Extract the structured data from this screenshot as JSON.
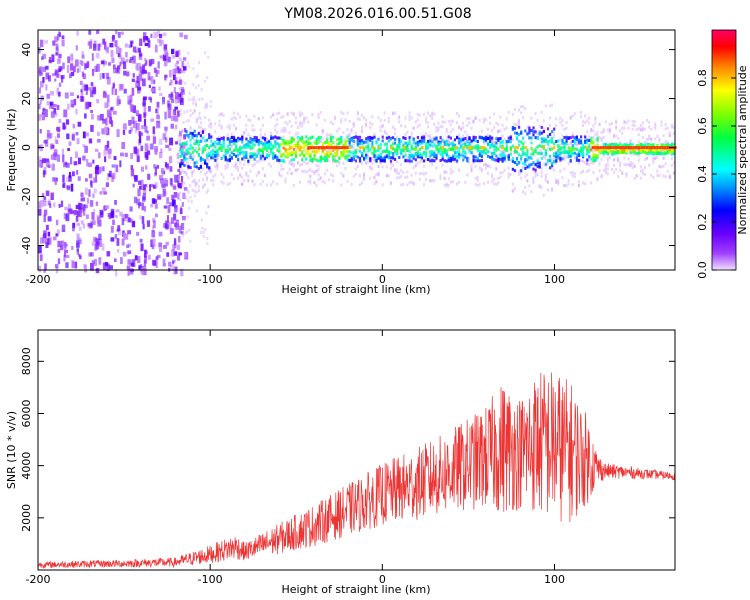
{
  "title": "YM08.2026.016.00.51.G08",
  "chart_data": [
    {
      "type": "heatmap",
      "xlabel": "Height of straight line (km)",
      "ylabel": "Frequency (Hz)",
      "xlim": [
        -200,
        170
      ],
      "ylim": [
        -50,
        48
      ],
      "xticks": [
        -200,
        -100,
        0,
        100
      ],
      "yticks": [
        -40,
        -20,
        0,
        20,
        40
      ],
      "colorbar": {
        "label": "Normalized spectral amplitude",
        "range": [
          0,
          1
        ],
        "ticks": [
          0.0,
          0.2,
          0.4,
          0.6,
          0.8
        ],
        "tick_labels": [
          "0.0",
          "0.2",
          "0.4",
          "0.6",
          "0.8"
        ]
      },
      "description_features": {
        "noise_region_km": [
          -200,
          -115
        ],
        "signal_band_center_hz": 0,
        "signal_start_km": -115,
        "strong_segments_km": [
          [
            -60,
            -20
          ],
          [
            120,
            170
          ]
        ]
      }
    },
    {
      "type": "line",
      "xlabel": "Height of straight line (km)",
      "ylabel": "SNR (10 * v/v)",
      "xlim": [
        -200,
        170
      ],
      "ylim": [
        0,
        9200
      ],
      "xticks": [
        -200,
        -100,
        0,
        100
      ],
      "yticks": [
        2000,
        4000,
        6000,
        8000
      ],
      "series": [
        {
          "name": "SNR",
          "color": "#ee3333",
          "envelope_x": [
            -200,
            -150,
            -120,
            -100,
            -85,
            -80,
            -60,
            -40,
            -20,
            0,
            20,
            40,
            60,
            70,
            80,
            90,
            100,
            110,
            120,
            125,
            130,
            150,
            170
          ],
          "envelope_mean": [
            200,
            250,
            300,
            600,
            900,
            700,
            1200,
            1700,
            2300,
            2900,
            3300,
            3800,
            4300,
            4700,
            4500,
            4900,
            4800,
            4500,
            4200,
            3900,
            3800,
            3700,
            3600
          ],
          "envelope_halfwidth": [
            120,
            150,
            180,
            350,
            500,
            350,
            600,
            800,
            1000,
            1200,
            1400,
            1600,
            2000,
            2600,
            2200,
            2800,
            3000,
            2700,
            1600,
            600,
            300,
            200,
            150
          ]
        }
      ]
    }
  ]
}
